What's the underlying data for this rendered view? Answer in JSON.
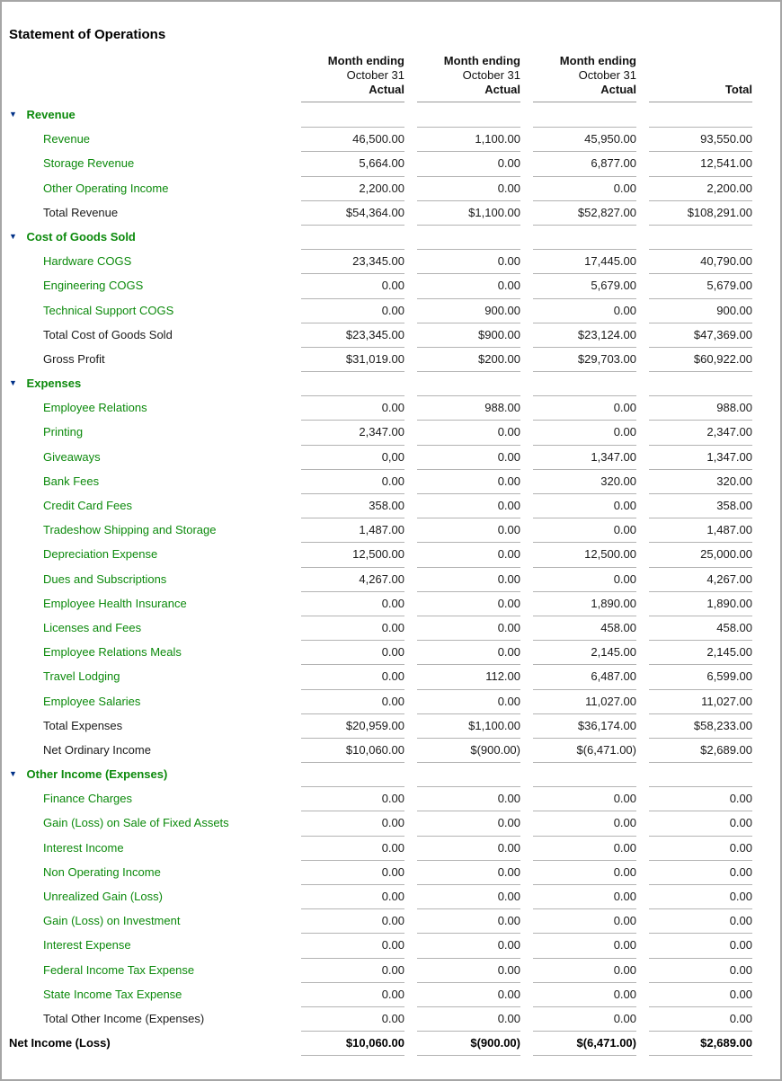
{
  "title": "Statement of Operations",
  "icons": {
    "collapse_triangle": "▼"
  },
  "colors": {
    "green": "#0c8a0c",
    "navy": "#003087",
    "line": "#b3b3b3",
    "header_line": "#999999",
    "page_border": "#a6a6a6"
  },
  "columns": [
    {
      "line1": "Month ending",
      "line2": "October 31",
      "line3": "Actual"
    },
    {
      "line1": "Month ending",
      "line2": "October 31",
      "line3": "Actual"
    },
    {
      "line1": "Month ending",
      "line2": "October 31",
      "line3": "Actual"
    },
    {
      "line1": "",
      "line2": "",
      "line3": "Total"
    }
  ],
  "rows": [
    {
      "type": "section",
      "label": "Revenue",
      "values": [
        "",
        "",
        "",
        ""
      ]
    },
    {
      "type": "item",
      "label": "Revenue",
      "values": [
        "46,500.00",
        "1,100.00",
        "45,950.00",
        "93,550.00"
      ]
    },
    {
      "type": "item",
      "label": "Storage Revenue",
      "values": [
        "5,664.00",
        "0.00",
        "6,877.00",
        "12,541.00"
      ]
    },
    {
      "type": "item",
      "label": "Other Operating Income",
      "values": [
        "2,200.00",
        "0.00",
        "0.00",
        "2,200.00"
      ]
    },
    {
      "type": "total",
      "label": "Total Revenue",
      "values": [
        "$54,364.00",
        "$1,100.00",
        "$52,827.00",
        "$108,291.00"
      ],
      "bottom_border": true
    },
    {
      "type": "section",
      "label": "Cost of Goods Sold",
      "values": [
        "",
        "",
        "",
        ""
      ]
    },
    {
      "type": "item",
      "label": "Hardware COGS",
      "values": [
        "23,345.00",
        "0.00",
        "17,445.00",
        "40,790.00"
      ]
    },
    {
      "type": "item",
      "label": "Engineering COGS",
      "values": [
        "0.00",
        "0.00",
        "5,679.00",
        "5,679.00"
      ]
    },
    {
      "type": "item",
      "label": "Technical Support COGS",
      "values": [
        "0.00",
        "900.00",
        "0.00",
        "900.00"
      ]
    },
    {
      "type": "total",
      "label": "Total Cost of Goods Sold",
      "values": [
        "$23,345.00",
        "$900.00",
        "$23,124.00",
        "$47,369.00"
      ]
    },
    {
      "type": "total",
      "label": "Gross Profit",
      "values": [
        "$31,019.00",
        "$200.00",
        "$29,703.00",
        "$60,922.00"
      ],
      "bottom_border": true
    },
    {
      "type": "section",
      "label": "Expenses",
      "values": [
        "",
        "",
        "",
        ""
      ]
    },
    {
      "type": "item",
      "label": "Employee Relations",
      "values": [
        "0.00",
        "988.00",
        "0.00",
        "988.00"
      ]
    },
    {
      "type": "item",
      "label": "Printing",
      "values": [
        "2,347.00",
        "0.00",
        "0.00",
        "2,347.00"
      ]
    },
    {
      "type": "item",
      "label": "Giveaways",
      "values": [
        "0,00",
        "0.00",
        "1,347.00",
        "1,347.00"
      ]
    },
    {
      "type": "item",
      "label": "Bank Fees",
      "values": [
        "0.00",
        "0.00",
        "320.00",
        "320.00"
      ]
    },
    {
      "type": "item",
      "label": "Credit Card Fees",
      "values": [
        "358.00",
        "0.00",
        "0.00",
        "358.00"
      ]
    },
    {
      "type": "item",
      "label": "Tradeshow Shipping and Storage",
      "values": [
        "1,487.00",
        "0.00",
        "0.00",
        "1,487.00"
      ]
    },
    {
      "type": "item",
      "label": "Depreciation Expense",
      "values": [
        "12,500.00",
        "0.00",
        "12,500.00",
        "25,000.00"
      ]
    },
    {
      "type": "item",
      "label": "Dues and Subscriptions",
      "values": [
        "4,267.00",
        "0.00",
        "0.00",
        "4,267.00"
      ]
    },
    {
      "type": "item",
      "label": "Employee Health Insurance",
      "values": [
        "0.00",
        "0.00",
        "1,890.00",
        "1,890.00"
      ]
    },
    {
      "type": "item",
      "label": "Licenses and Fees",
      "values": [
        "0.00",
        "0.00",
        "458.00",
        "458.00"
      ]
    },
    {
      "type": "item",
      "label": "Employee Relations Meals",
      "values": [
        "0.00",
        "0.00",
        "2,145.00",
        "2,145.00"
      ]
    },
    {
      "type": "item",
      "label": "Travel Lodging",
      "values": [
        "0.00",
        "112.00",
        "6,487.00",
        "6,599.00"
      ]
    },
    {
      "type": "item",
      "label": "Employee Salaries",
      "values": [
        "0.00",
        "0.00",
        "11,027.00",
        "11,027.00"
      ]
    },
    {
      "type": "total",
      "label": "Total Expenses",
      "values": [
        "$20,959.00",
        "$1,100.00",
        "$36,174.00",
        "$58,233.00"
      ]
    },
    {
      "type": "total",
      "label": "Net Ordinary Income",
      "values": [
        "$10,060.00",
        "$(900.00)",
        "$(6,471.00)",
        "$2,689.00"
      ],
      "bottom_border": true
    },
    {
      "type": "section",
      "label": "Other Income (Expenses)",
      "values": [
        "",
        "",
        "",
        ""
      ]
    },
    {
      "type": "item",
      "label": "Finance Charges",
      "values": [
        "0.00",
        "0.00",
        "0.00",
        "0.00"
      ]
    },
    {
      "type": "item",
      "label": "Gain (Loss) on Sale of Fixed Assets",
      "values": [
        "0.00",
        "0.00",
        "0.00",
        "0.00"
      ]
    },
    {
      "type": "item",
      "label": "Interest Income",
      "values": [
        "0.00",
        "0.00",
        "0.00",
        "0.00"
      ]
    },
    {
      "type": "item",
      "label": "Non Operating Income",
      "values": [
        "0.00",
        "0.00",
        "0.00",
        "0.00"
      ]
    },
    {
      "type": "item",
      "label": "Unrealized Gain (Loss)",
      "values": [
        "0.00",
        "0.00",
        "0.00",
        "0.00"
      ]
    },
    {
      "type": "item",
      "label": "Gain (Loss) on Investment",
      "values": [
        "0.00",
        "0.00",
        "0.00",
        "0.00"
      ]
    },
    {
      "type": "item",
      "label": "Interest Expense",
      "values": [
        "0.00",
        "0.00",
        "0.00",
        "0.00"
      ]
    },
    {
      "type": "item",
      "label": "Federal Income Tax Expense",
      "values": [
        "0.00",
        "0.00",
        "0.00",
        "0.00"
      ]
    },
    {
      "type": "item",
      "label": "State Income Tax Expense",
      "values": [
        "0.00",
        "0.00",
        "0.00",
        "0.00"
      ]
    },
    {
      "type": "total",
      "label": "Total Other Income (Expenses)",
      "values": [
        "0.00",
        "0.00",
        "0.00",
        "0.00"
      ]
    },
    {
      "type": "grand",
      "label": "Net Income (Loss)",
      "values": [
        "$10,060.00",
        "$(900.00)",
        "$(6,471.00)",
        "$2,689.00"
      ],
      "bottom_border": true
    }
  ]
}
